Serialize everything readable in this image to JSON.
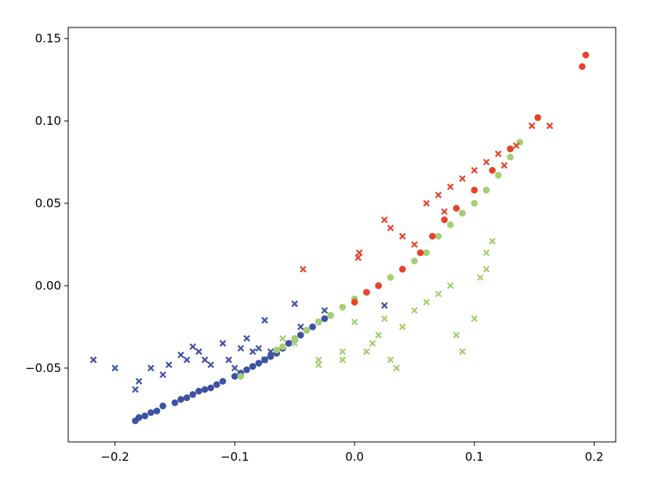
{
  "chart_data": {
    "type": "scatter",
    "xlim": [
      -0.239,
      0.218
    ],
    "ylim": [
      -0.0948,
      0.1567
    ],
    "xticks": [
      {
        "value": -0.2,
        "label": "−0.2"
      },
      {
        "value": -0.1,
        "label": "−0.1"
      },
      {
        "value": 0,
        "label": "0.0"
      },
      0.1,
      0.2
    ],
    "yticks": [
      {
        "value": -0.05,
        "label": "−0.05"
      },
      {
        "value": 0,
        "label": "0.00"
      },
      0.05,
      {
        "value": 0.1,
        "label": "0.10"
      },
      0.15
    ],
    "series": [
      {
        "color": "#3f51a3",
        "marker": "o",
        "x": [
          -0.183,
          -0.18,
          -0.175,
          -0.17,
          -0.165,
          -0.16,
          -0.15,
          -0.145,
          -0.14,
          -0.135,
          -0.13,
          -0.125,
          -0.12,
          -0.115,
          -0.11,
          -0.1,
          -0.095,
          -0.09,
          -0.085,
          -0.08,
          -0.075,
          -0.07,
          -0.065,
          -0.06,
          -0.055,
          -0.05,
          -0.045,
          -0.04,
          -0.035,
          -0.03,
          -0.025,
          -0.02
        ],
        "y": [
          -0.082,
          -0.08,
          -0.079,
          -0.077,
          -0.076,
          -0.073,
          -0.071,
          -0.069,
          -0.068,
          -0.066,
          -0.064,
          -0.063,
          -0.062,
          -0.06,
          -0.058,
          -0.055,
          -0.053,
          -0.051,
          -0.049,
          -0.047,
          -0.045,
          -0.043,
          -0.041,
          -0.038,
          -0.035,
          -0.033,
          -0.03,
          -0.027,
          -0.025,
          -0.022,
          -0.02,
          -0.018
        ]
      },
      {
        "color": "#3f51a3",
        "marker": "x",
        "x": [
          -0.218,
          -0.2,
          -0.183,
          -0.18,
          -0.17,
          -0.16,
          -0.155,
          -0.145,
          -0.14,
          -0.135,
          -0.13,
          -0.125,
          -0.12,
          -0.11,
          -0.105,
          -0.1,
          -0.095,
          -0.09,
          -0.085,
          -0.08,
          -0.075,
          -0.07,
          -0.075,
          -0.05,
          -0.045,
          -0.025,
          0.025
        ],
        "y": [
          -0.045,
          -0.05,
          -0.063,
          -0.058,
          -0.05,
          -0.054,
          -0.048,
          -0.042,
          -0.045,
          -0.037,
          -0.04,
          -0.045,
          -0.048,
          -0.035,
          -0.045,
          -0.05,
          -0.038,
          -0.032,
          -0.04,
          -0.038,
          -0.045,
          -0.04,
          -0.021,
          -0.011,
          -0.025,
          -0.015,
          -0.012
        ]
      },
      {
        "color": "#a4cf72",
        "marker": "o",
        "x": [
          -0.095,
          -0.065,
          -0.06,
          -0.05,
          -0.04,
          -0.03,
          -0.02,
          -0.01,
          0.0,
          0.01,
          0.02,
          0.03,
          0.04,
          0.05,
          0.06,
          0.07,
          0.08,
          0.09,
          0.1,
          0.11,
          0.12,
          0.13,
          0.138
        ],
        "y": [
          -0.055,
          -0.039,
          -0.037,
          -0.032,
          -0.027,
          -0.022,
          -0.018,
          -0.013,
          -0.008,
          -0.004,
          0.0,
          0.005,
          0.01,
          0.015,
          0.02,
          0.03,
          0.037,
          0.044,
          0.05,
          0.058,
          0.067,
          0.078,
          0.087
        ]
      },
      {
        "color": "#a4cf72",
        "marker": "x",
        "x": [
          -0.06,
          -0.05,
          -0.03,
          -0.03,
          -0.01,
          -0.01,
          0.0,
          0.01,
          0.015,
          0.02,
          0.025,
          0.03,
          0.035,
          0.04,
          0.05,
          0.06,
          0.07,
          0.08,
          0.085,
          0.09,
          0.1,
          0.11,
          0.11,
          0.115,
          0.105
        ],
        "y": [
          -0.032,
          -0.035,
          -0.045,
          -0.048,
          -0.04,
          -0.045,
          -0.022,
          -0.04,
          -0.035,
          -0.03,
          -0.02,
          -0.045,
          -0.05,
          -0.025,
          -0.015,
          -0.01,
          -0.005,
          0.0,
          -0.03,
          -0.04,
          -0.02,
          0.02,
          0.01,
          0.027,
          0.005
        ]
      },
      {
        "color": "#e8422a",
        "marker": "o",
        "x": [
          0.0,
          0.01,
          0.02,
          0.04,
          0.055,
          0.065,
          0.075,
          0.085,
          0.1,
          0.115,
          0.13,
          0.153,
          0.19,
          0.193
        ],
        "y": [
          -0.01,
          -0.004,
          0.0,
          0.01,
          0.02,
          0.03,
          0.04,
          0.047,
          0.058,
          0.07,
          0.083,
          0.102,
          0.133,
          0.14
        ]
      },
      {
        "color": "#e8422a",
        "marker": "x",
        "x": [
          -0.043,
          0.003,
          0.004,
          0.025,
          0.03,
          0.04,
          0.05,
          0.06,
          0.07,
          0.075,
          0.08,
          0.09,
          0.1,
          0.11,
          0.12,
          0.125,
          0.135,
          0.148,
          0.163
        ],
        "y": [
          0.01,
          0.017,
          0.02,
          0.04,
          0.035,
          0.03,
          0.025,
          0.05,
          0.055,
          0.045,
          0.06,
          0.065,
          0.07,
          0.075,
          0.08,
          0.073,
          0.085,
          0.097,
          0.097
        ]
      }
    ]
  }
}
